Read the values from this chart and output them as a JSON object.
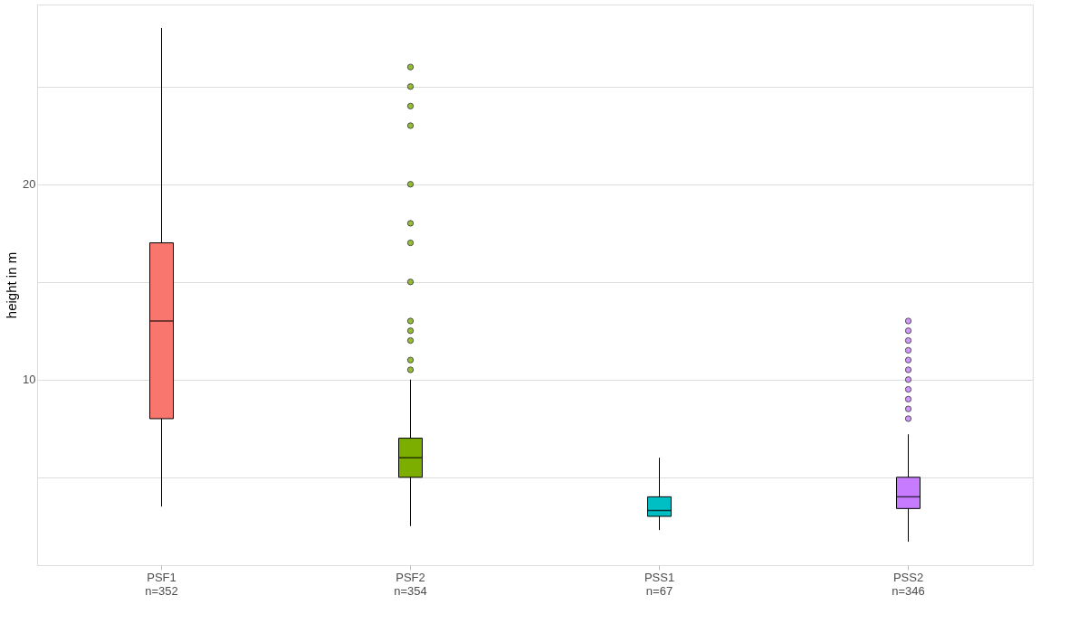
{
  "chart_data": {
    "type": "box",
    "ylabel": "height in m",
    "categories": [
      "PSF1\nn=352",
      "PSF2\nn=354",
      "PSS1\nn=67",
      "PSS2\nn=346"
    ],
    "colors": [
      "#f8766d",
      "#7cae00",
      "#00bfc4",
      "#c77cff"
    ],
    "boxes": [
      {
        "low": 3.5,
        "q1": 8,
        "median": 13,
        "q3": 17,
        "high": 28
      },
      {
        "low": 2.5,
        "q1": 5,
        "median": 6,
        "q3": 7,
        "high": 10,
        "outliers": [
          10.5,
          11,
          12,
          12.5,
          13,
          15,
          17,
          18,
          20,
          23,
          24,
          25,
          26
        ]
      },
      {
        "low": 2.3,
        "q1": 3,
        "median": 3.3,
        "q3": 4,
        "high": 6
      },
      {
        "low": 1.7,
        "q1": 3.4,
        "median": 4,
        "q3": 5,
        "high": 7.2,
        "outliers": [
          8,
          8.5,
          9,
          9.5,
          10,
          10.5,
          11,
          11.5,
          12,
          12.5,
          13
        ]
      }
    ],
    "ylim": [
      0.5,
      29.2
    ],
    "yticks": [
      {
        "value": 5,
        "label": null
      },
      10,
      {
        "value": 15,
        "label": null
      },
      20,
      {
        "value": 25,
        "label": null
      }
    ],
    "grid": "y"
  }
}
